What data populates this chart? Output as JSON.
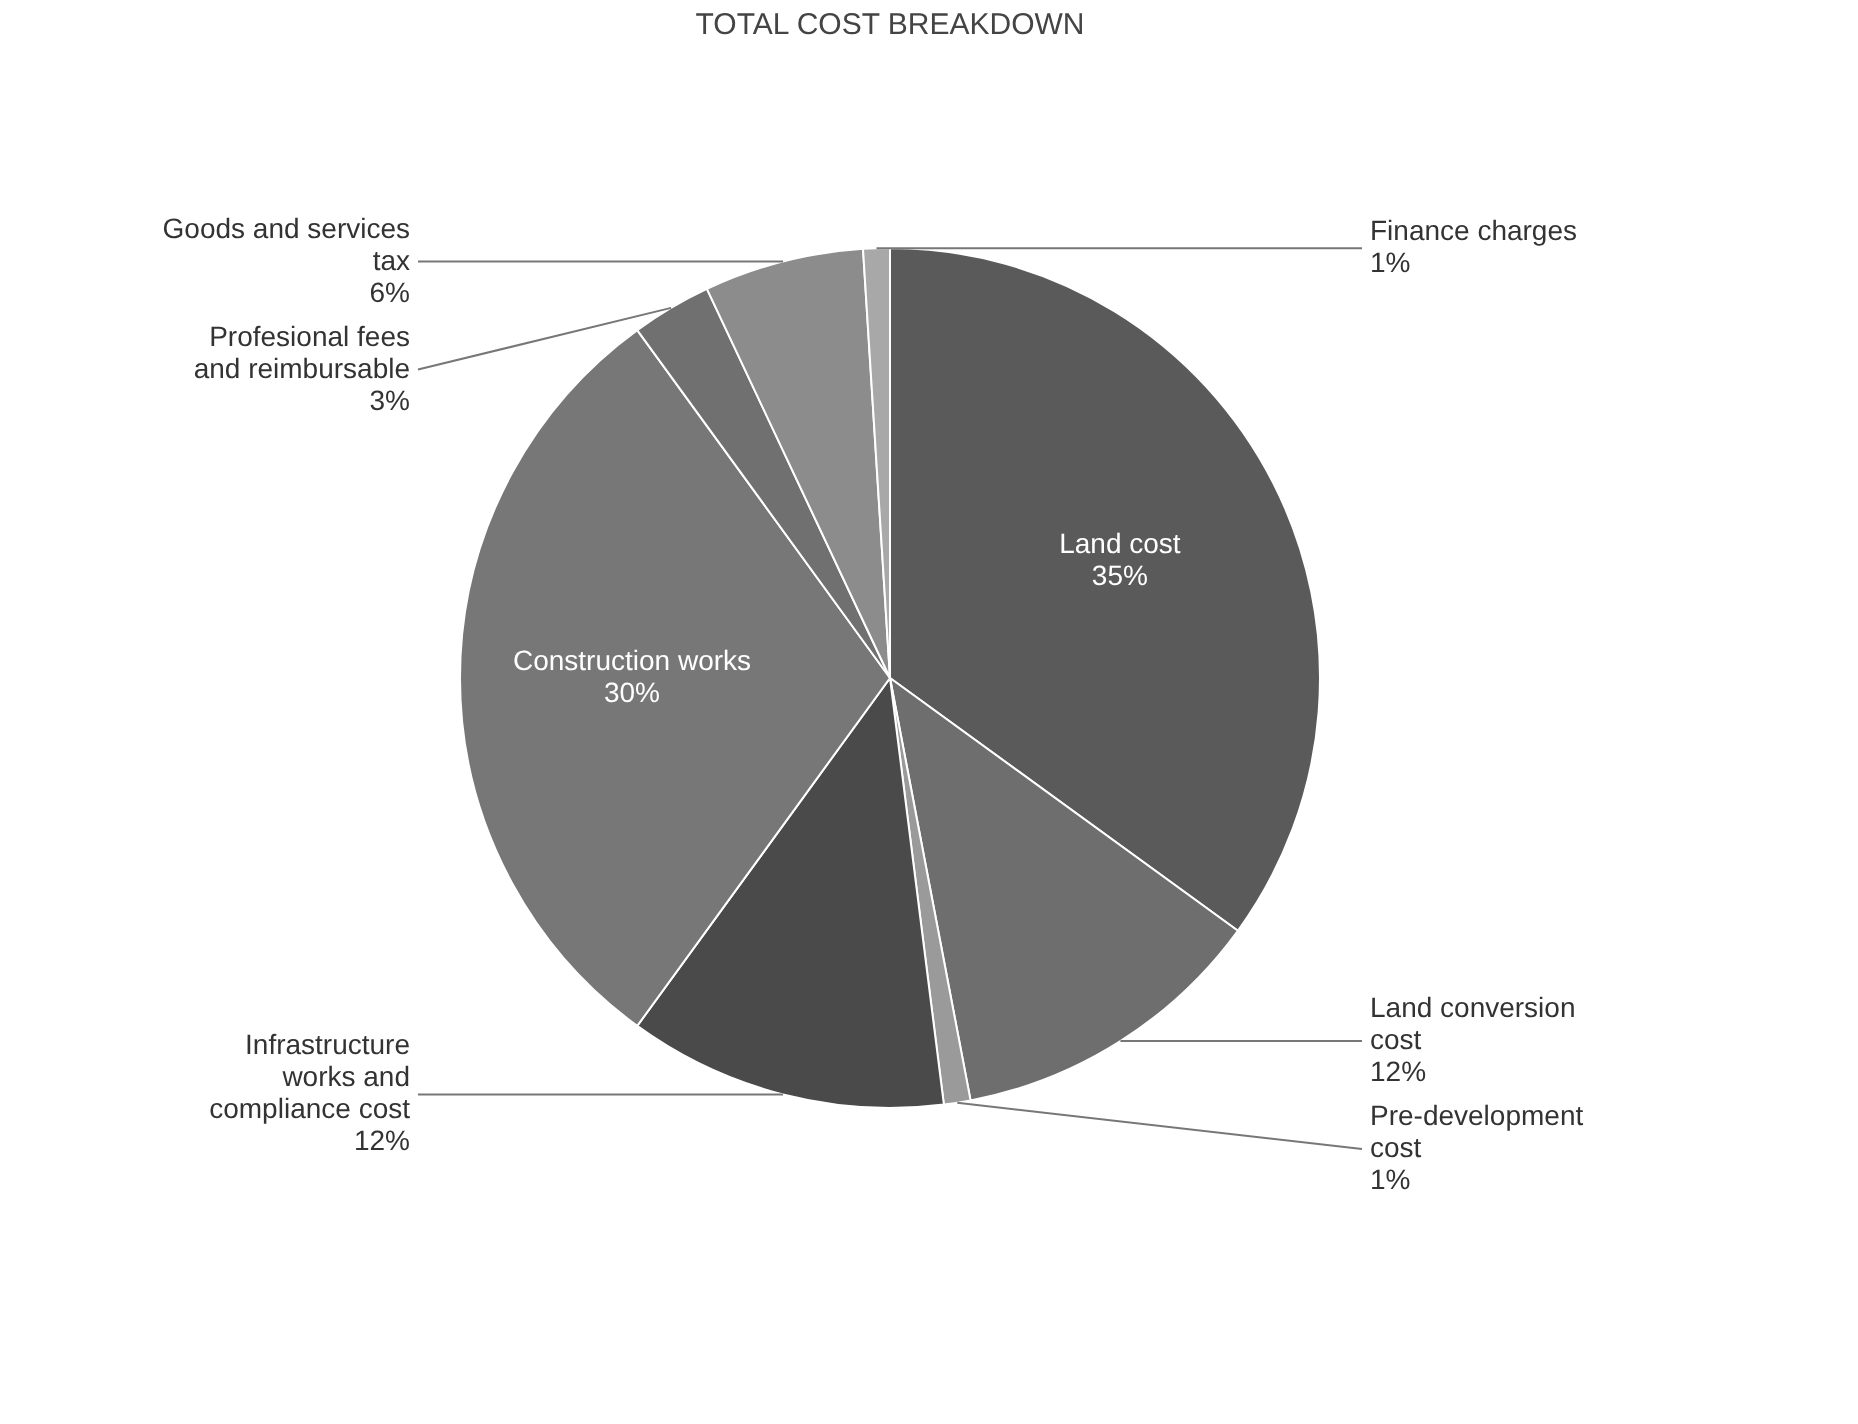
{
  "chart_data": {
    "type": "pie",
    "title": "TOTAL COST BREAKDOWN",
    "categories": [
      "Land cost",
      "Land conversion cost",
      "Pre-development cost",
      "Infrastructure works and compliance cost",
      "Construction works",
      "Profesional fees and reimbursable",
      "Goods and services tax",
      "Finance charges"
    ],
    "values": [
      35,
      12,
      1,
      12,
      30,
      3,
      6,
      1
    ],
    "value_labels": [
      "35%",
      "12%",
      "1%",
      "12%",
      "30%",
      "3%",
      "6%",
      "1%"
    ],
    "colors": [
      "#5a5a5a",
      "#6e6e6e",
      "#9a9a9a",
      "#4a4a4a",
      "#777777",
      "#707070",
      "#8c8c8c",
      "#a8a8a8"
    ]
  }
}
